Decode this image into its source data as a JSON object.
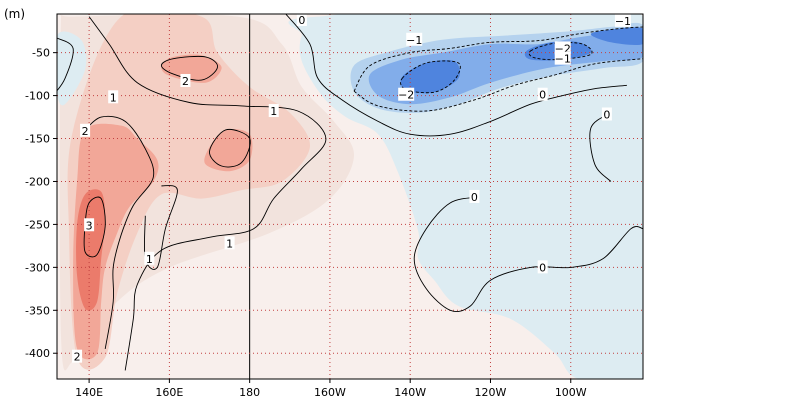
{
  "chart_data": {
    "type": "heatmap",
    "title": "",
    "xlabel": "",
    "ylabel": "(m)",
    "x_range": [
      132,
      278
    ],
    "y_range": [
      -430,
      -5
    ],
    "x_ticks": [
      {
        "value": 140,
        "label": "140E"
      },
      {
        "value": 160,
        "label": "160E"
      },
      {
        "value": 180,
        "label": "180"
      },
      {
        "value": 200,
        "label": "160W"
      },
      {
        "value": 220,
        "label": "140W"
      },
      {
        "value": 240,
        "label": "120W"
      },
      {
        "value": 260,
        "label": "100W"
      }
    ],
    "y_ticks": [
      {
        "value": -50,
        "label": "-50"
      },
      {
        "value": -100,
        "label": "-100"
      },
      {
        "value": -150,
        "label": "-150"
      },
      {
        "value": -200,
        "label": "-200"
      },
      {
        "value": -250,
        "label": "-250"
      },
      {
        "value": -300,
        "label": "-300"
      },
      {
        "value": -350,
        "label": "-350"
      },
      {
        "value": -400,
        "label": "-400"
      }
    ],
    "grid": true,
    "dateline_x": 180,
    "colors": {
      "pos_1": "#f2e3dd",
      "pos_2": "#f4cfc4",
      "pos_3": "#f2a798",
      "pos_4": "#eb7b6b",
      "neg_1": "#ddecf2",
      "neg_2": "#b5d2ee",
      "neg_3": "#82adea",
      "neg_4": "#4f84de",
      "contour": "#000000",
      "grid": "#c24040"
    },
    "regions": [
      {
        "level": "pos_1",
        "points": [
          [
            135,
            -8
          ],
          [
            177,
            -8
          ],
          [
            188,
            -40
          ],
          [
            193,
            -90
          ],
          [
            201,
            -130
          ],
          [
            206,
            -170
          ],
          [
            200,
            -220
          ],
          [
            185,
            -260
          ],
          [
            160,
            -300
          ],
          [
            147,
            -340
          ],
          [
            142,
            -380
          ],
          [
            136,
            -410
          ],
          [
            133,
            -380
          ],
          [
            133,
            -10
          ]
        ]
      },
      {
        "level": "pos_2",
        "points": [
          [
            148,
            -8
          ],
          [
            168,
            -8
          ],
          [
            172,
            -50
          ],
          [
            180,
            -90
          ],
          [
            190,
            -120
          ],
          [
            195,
            -160
          ],
          [
            188,
            -200
          ],
          [
            178,
            -210
          ],
          [
            168,
            -220
          ],
          [
            158,
            -215
          ],
          [
            152,
            -260
          ],
          [
            147,
            -330
          ],
          [
            144,
            -405
          ],
          [
            137,
            -405
          ],
          [
            135,
            -260
          ],
          [
            136,
            -140
          ]
        ]
      },
      {
        "level": "pos_3",
        "points": [
          [
            139,
            -140
          ],
          [
            148,
            -135
          ],
          [
            152,
            -150
          ],
          [
            157,
            -175
          ],
          [
            156,
            -200
          ],
          [
            150,
            -230
          ],
          [
            147,
            -260
          ],
          [
            144,
            -300
          ],
          [
            143,
            -340
          ],
          [
            142,
            -400
          ],
          [
            137,
            -395
          ],
          [
            136,
            -300
          ],
          [
            137,
            -200
          ]
        ]
      },
      {
        "level": "pos_3",
        "points": [
          [
            174,
            -140
          ],
          [
            180,
            -145
          ],
          [
            180,
            -175
          ],
          [
            175,
            -188
          ],
          [
            169,
            -180
          ],
          [
            170,
            -160
          ]
        ]
      },
      {
        "level": "pos_3",
        "points": [
          [
            161,
            -55
          ],
          [
            168,
            -53
          ],
          [
            173,
            -67
          ],
          [
            169,
            -85
          ],
          [
            160,
            -77
          ],
          [
            158,
            -65
          ]
        ]
      },
      {
        "level": "pos_4",
        "points": [
          [
            139,
            -215
          ],
          [
            143,
            -212
          ],
          [
            144,
            -245
          ],
          [
            143,
            -290
          ],
          [
            142,
            -340
          ],
          [
            139,
            -348
          ],
          [
            137,
            -310
          ],
          [
            137,
            -250
          ]
        ]
      },
      {
        "level": "neg_1",
        "points": [
          [
            197,
            -8
          ],
          [
            278,
            -8
          ],
          [
            278,
            -430
          ],
          [
            262,
            -430
          ],
          [
            256,
            -400
          ],
          [
            245,
            -360
          ],
          [
            232,
            -345
          ],
          [
            226,
            -315
          ],
          [
            222,
            -290
          ],
          [
            222,
            -258
          ],
          [
            217,
            -190
          ],
          [
            212,
            -145
          ],
          [
            204,
            -125
          ],
          [
            198,
            -100
          ],
          [
            193,
            -60
          ],
          [
            193,
            -30
          ]
        ]
      },
      {
        "level": "neg_1",
        "points": [
          [
            132,
            -30
          ],
          [
            138,
            -35
          ],
          [
            139,
            -70
          ],
          [
            134,
            -110
          ],
          [
            132,
            -95
          ]
        ]
      },
      {
        "level": "neg_2",
        "points": [
          [
            206,
            -65
          ],
          [
            214,
            -50
          ],
          [
            228,
            -35
          ],
          [
            244,
            -30
          ],
          [
            260,
            -25
          ],
          [
            270,
            -20
          ],
          [
            278,
            -18
          ],
          [
            278,
            -60
          ],
          [
            268,
            -68
          ],
          [
            254,
            -78
          ],
          [
            242,
            -92
          ],
          [
            232,
            -110
          ],
          [
            222,
            -120
          ],
          [
            212,
            -115
          ],
          [
            206,
            -95
          ]
        ]
      },
      {
        "level": "neg_3",
        "points": [
          [
            210,
            -75
          ],
          [
            218,
            -58
          ],
          [
            228,
            -50
          ],
          [
            240,
            -40
          ],
          [
            252,
            -40
          ],
          [
            262,
            -32
          ],
          [
            272,
            -26
          ],
          [
            278,
            -24
          ],
          [
            278,
            -55
          ],
          [
            268,
            -60
          ],
          [
            254,
            -68
          ],
          [
            240,
            -85
          ],
          [
            230,
            -102
          ],
          [
            220,
            -110
          ],
          [
            212,
            -100
          ]
        ]
      },
      {
        "level": "neg_4",
        "points": [
          [
            218,
            -78
          ],
          [
            224,
            -62
          ],
          [
            231,
            -60
          ],
          [
            232,
            -80
          ],
          [
            226,
            -96
          ],
          [
            219,
            -94
          ]
        ]
      },
      {
        "level": "neg_4",
        "points": [
          [
            249,
            -48
          ],
          [
            255,
            -38
          ],
          [
            262,
            -38
          ],
          [
            265,
            -50
          ],
          [
            258,
            -58
          ],
          [
            250,
            -58
          ]
        ]
      },
      {
        "level": "neg_4",
        "points": [
          [
            265,
            -28
          ],
          [
            272,
            -22
          ],
          [
            278,
            -22
          ],
          [
            278,
            -40
          ],
          [
            270,
            -38
          ]
        ]
      }
    ],
    "contours": [
      {
        "value": 1,
        "dashed": false,
        "points": [
          [
            140,
            -8
          ],
          [
            145,
            -40
          ],
          [
            152,
            -85
          ],
          [
            165,
            -108
          ],
          [
            178,
            -112
          ],
          [
            192,
            -118
          ],
          [
            199,
            -150
          ],
          [
            193,
            -185
          ],
          [
            186,
            -220
          ],
          [
            181,
            -255
          ],
          [
            170,
            -265
          ],
          [
            158,
            -280
          ],
          [
            152,
            -320
          ],
          [
            151,
            -360
          ],
          [
            149,
            -420
          ]
        ]
      },
      {
        "value": 1,
        "dashed": false,
        "points": [
          [
            158,
            -205
          ],
          [
            162,
            -210
          ],
          [
            159,
            -255
          ],
          [
            157,
            -300
          ],
          [
            154,
            -290
          ],
          [
            154,
            -240
          ]
        ]
      },
      {
        "value": 2,
        "dashed": false,
        "points": [
          [
            139,
            -140
          ],
          [
            143,
            -125
          ],
          [
            149,
            -130
          ],
          [
            154,
            -162
          ],
          [
            156,
            -195
          ],
          [
            151,
            -228
          ],
          [
            148,
            -262
          ],
          [
            146,
            -300
          ],
          [
            146,
            -340
          ],
          [
            144,
            -395
          ]
        ]
      },
      {
        "value": 2,
        "dashed": false,
        "points": [
          [
            161,
            -57
          ],
          [
            169,
            -55
          ],
          [
            172,
            -67
          ],
          [
            168,
            -82
          ],
          [
            161,
            -75
          ],
          [
            158,
            -65
          ],
          [
            161,
            -57
          ]
        ]
      },
      {
        "value": 2,
        "dashed": false,
        "points": [
          [
            174,
            -140
          ],
          [
            180,
            -150
          ],
          [
            178,
            -178
          ],
          [
            173,
            -182
          ],
          [
            170,
            -165
          ],
          [
            174,
            -140
          ]
        ]
      },
      {
        "value": 3,
        "dashed": false,
        "points": [
          [
            140,
            -225
          ],
          [
            143,
            -220
          ],
          [
            144,
            -252
          ],
          [
            142,
            -285
          ],
          [
            139,
            -282
          ],
          [
            139,
            -250
          ],
          [
            140,
            -225
          ]
        ]
      },
      {
        "value": 0,
        "dashed": false,
        "points": [
          [
            189,
            -5
          ],
          [
            195,
            -40
          ],
          [
            197,
            -80
          ],
          [
            203,
            -105
          ],
          [
            212,
            -130
          ],
          [
            220,
            -145
          ],
          [
            230,
            -145
          ],
          [
            240,
            -130
          ],
          [
            250,
            -110
          ],
          [
            258,
            -100
          ],
          [
            266,
            -92
          ],
          [
            274,
            -88
          ]
        ]
      },
      {
        "value": 0,
        "dashed": false,
        "points": [
          [
            237,
            -218
          ],
          [
            230,
            -225
          ],
          [
            224,
            -255
          ],
          [
            221,
            -290
          ],
          [
            224,
            -325
          ],
          [
            230,
            -350
          ],
          [
            235,
            -345
          ],
          [
            240,
            -315
          ],
          [
            250,
            -300
          ],
          [
            260,
            -300
          ],
          [
            268,
            -290
          ],
          [
            275,
            -255
          ],
          [
            278,
            -255
          ]
        ]
      },
      {
        "value": 0,
        "dashed": false,
        "points": [
          [
            270,
            -120
          ],
          [
            265,
            -138
          ],
          [
            266,
            -180
          ],
          [
            270,
            -200
          ]
        ]
      },
      {
        "value": 0,
        "dashed": false,
        "points": [
          [
            132,
            -33
          ],
          [
            136,
            -45
          ],
          [
            134,
            -80
          ],
          [
            131,
            -100
          ]
        ]
      },
      {
        "value": -1,
        "dashed": true,
        "points": [
          [
            206,
            -95
          ],
          [
            210,
            -65
          ],
          [
            220,
            -50
          ],
          [
            230,
            -45
          ],
          [
            240,
            -38
          ],
          [
            252,
            -36
          ],
          [
            262,
            -28
          ],
          [
            272,
            -22
          ],
          [
            278,
            -20
          ]
        ]
      },
      {
        "value": -1,
        "dashed": true,
        "points": [
          [
            206,
            -95
          ],
          [
            212,
            -112
          ],
          [
            224,
            -118
          ],
          [
            236,
            -105
          ],
          [
            246,
            -88
          ],
          [
            256,
            -76
          ],
          [
            266,
            -63
          ],
          [
            278,
            -57
          ]
        ]
      },
      {
        "value": -2,
        "dashed": true,
        "points": [
          [
            218,
            -80
          ],
          [
            224,
            -62
          ],
          [
            232,
            -62
          ],
          [
            231,
            -82
          ],
          [
            226,
            -96
          ],
          [
            219,
            -93
          ],
          [
            218,
            -80
          ]
        ]
      },
      {
        "value": -2,
        "dashed": true,
        "points": [
          [
            250,
            -48
          ],
          [
            256,
            -39
          ],
          [
            263,
            -40
          ],
          [
            265,
            -52
          ],
          [
            257,
            -58
          ],
          [
            251,
            -56
          ],
          [
            250,
            -48
          ]
        ]
      }
    ],
    "contour_labels": [
      {
        "text": "0",
        "x": 193,
        "y": -12
      },
      {
        "text": "1",
        "x": 146,
        "y": -102
      },
      {
        "text": "1",
        "x": 186,
        "y": -118
      },
      {
        "text": "2",
        "x": 164,
        "y": -83
      },
      {
        "text": "2",
        "x": 139,
        "y": -141
      },
      {
        "text": "3",
        "x": 140,
        "y": -251
      },
      {
        "text": "1",
        "x": 155,
        "y": -290
      },
      {
        "text": "1",
        "x": 175,
        "y": -272
      },
      {
        "text": "2",
        "x": 137,
        "y": -404
      },
      {
        "text": "−1",
        "x": 221,
        "y": -35
      },
      {
        "text": "−2",
        "x": 219,
        "y": -99
      },
      {
        "text": "−2",
        "x": 258,
        "y": -45
      },
      {
        "text": "−1",
        "x": 258,
        "y": -57
      },
      {
        "text": "−1",
        "x": 273,
        "y": -13
      },
      {
        "text": "0",
        "x": 253,
        "y": -99
      },
      {
        "text": "0",
        "x": 269,
        "y": -122
      },
      {
        "text": "0",
        "x": 236,
        "y": -218
      },
      {
        "text": "0",
        "x": 253,
        "y": -300
      }
    ]
  }
}
